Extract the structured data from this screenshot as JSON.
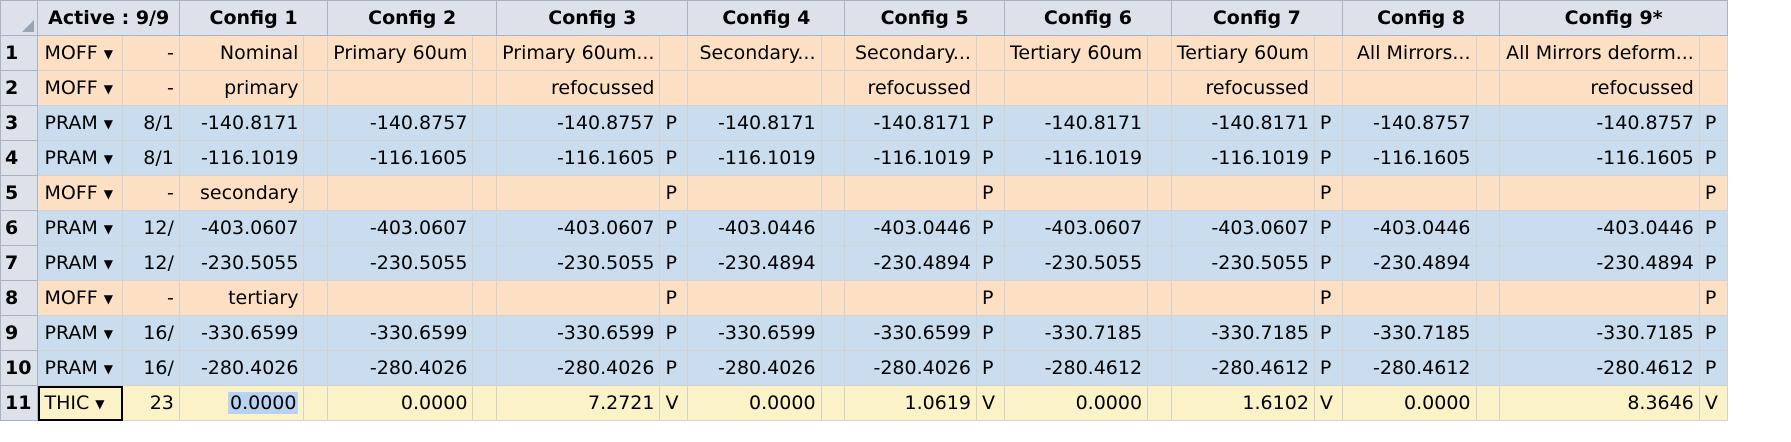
{
  "header": {
    "active_label": "Active : 9/9",
    "configs": [
      "Config 1",
      "Config 2",
      "Config 3",
      "Config 4",
      "Config 5",
      "Config 6",
      "Config 7",
      "Config 8",
      "Config 9*"
    ]
  },
  "rows": [
    {
      "num": "1",
      "op": "MOFF",
      "param": "-",
      "kind": "orange",
      "cells": [
        [
          "Nominal",
          ""
        ],
        [
          "Primary 60um",
          ""
        ],
        [
          "Primary 60um...",
          ""
        ],
        [
          "Secondary...",
          ""
        ],
        [
          "Secondary...",
          ""
        ],
        [
          "Tertiary 60um",
          ""
        ],
        [
          "Tertiary 60um",
          ""
        ],
        [
          "All Mirrors...",
          ""
        ],
        [
          "All Mirrors deform...",
          ""
        ]
      ]
    },
    {
      "num": "2",
      "op": "MOFF",
      "param": "-",
      "kind": "orange",
      "cells": [
        [
          "primary",
          ""
        ],
        [
          "",
          ""
        ],
        [
          "refocussed",
          ""
        ],
        [
          "",
          ""
        ],
        [
          "refocussed",
          ""
        ],
        [
          "",
          ""
        ],
        [
          "refocussed",
          ""
        ],
        [
          "",
          ""
        ],
        [
          "refocussed",
          ""
        ]
      ]
    },
    {
      "num": "3",
      "op": "PRAM",
      "param": "8/1",
      "kind": "blue",
      "cells": [
        [
          "-140.8171",
          ""
        ],
        [
          "-140.8757",
          ""
        ],
        [
          "-140.8757",
          "P"
        ],
        [
          "-140.8171",
          ""
        ],
        [
          "-140.8171",
          "P"
        ],
        [
          "-140.8171",
          ""
        ],
        [
          "-140.8171",
          "P"
        ],
        [
          "-140.8757",
          ""
        ],
        [
          "-140.8757",
          "P"
        ]
      ]
    },
    {
      "num": "4",
      "op": "PRAM",
      "param": "8/1",
      "kind": "blue",
      "cells": [
        [
          "-116.1019",
          ""
        ],
        [
          "-116.1605",
          ""
        ],
        [
          "-116.1605",
          "P"
        ],
        [
          "-116.1019",
          ""
        ],
        [
          "-116.1019",
          "P"
        ],
        [
          "-116.1019",
          ""
        ],
        [
          "-116.1019",
          "P"
        ],
        [
          "-116.1605",
          ""
        ],
        [
          "-116.1605",
          "P"
        ]
      ]
    },
    {
      "num": "5",
      "op": "MOFF",
      "param": "-",
      "kind": "orange",
      "cells": [
        [
          "secondary",
          ""
        ],
        [
          "",
          ""
        ],
        [
          "",
          "P"
        ],
        [
          "",
          ""
        ],
        [
          "",
          "P"
        ],
        [
          "",
          ""
        ],
        [
          "",
          "P"
        ],
        [
          "",
          ""
        ],
        [
          "",
          "P"
        ]
      ]
    },
    {
      "num": "6",
      "op": "PRAM",
      "param": "12/",
      "kind": "blue",
      "cells": [
        [
          "-403.0607",
          ""
        ],
        [
          "-403.0607",
          ""
        ],
        [
          "-403.0607",
          "P"
        ],
        [
          "-403.0446",
          ""
        ],
        [
          "-403.0446",
          "P"
        ],
        [
          "-403.0607",
          ""
        ],
        [
          "-403.0607",
          "P"
        ],
        [
          "-403.0446",
          ""
        ],
        [
          "-403.0446",
          "P"
        ]
      ]
    },
    {
      "num": "7",
      "op": "PRAM",
      "param": "12/",
      "kind": "blue",
      "cells": [
        [
          "-230.5055",
          ""
        ],
        [
          "-230.5055",
          ""
        ],
        [
          "-230.5055",
          "P"
        ],
        [
          "-230.4894",
          ""
        ],
        [
          "-230.4894",
          "P"
        ],
        [
          "-230.5055",
          ""
        ],
        [
          "-230.5055",
          "P"
        ],
        [
          "-230.4894",
          ""
        ],
        [
          "-230.4894",
          "P"
        ]
      ]
    },
    {
      "num": "8",
      "op": "MOFF",
      "param": "-",
      "kind": "orange",
      "cells": [
        [
          "tertiary",
          ""
        ],
        [
          "",
          ""
        ],
        [
          "",
          "P"
        ],
        [
          "",
          ""
        ],
        [
          "",
          "P"
        ],
        [
          "",
          ""
        ],
        [
          "",
          "P"
        ],
        [
          "",
          ""
        ],
        [
          "",
          "P"
        ]
      ]
    },
    {
      "num": "9",
      "op": "PRAM",
      "param": "16/",
      "kind": "blue",
      "cells": [
        [
          "-330.6599",
          ""
        ],
        [
          "-330.6599",
          ""
        ],
        [
          "-330.6599",
          "P"
        ],
        [
          "-330.6599",
          ""
        ],
        [
          "-330.6599",
          "P"
        ],
        [
          "-330.7185",
          ""
        ],
        [
          "-330.7185",
          "P"
        ],
        [
          "-330.7185",
          ""
        ],
        [
          "-330.7185",
          "P"
        ]
      ]
    },
    {
      "num": "10",
      "op": "PRAM",
      "param": "16/",
      "kind": "blue",
      "cells": [
        [
          "-280.4026",
          ""
        ],
        [
          "-280.4026",
          ""
        ],
        [
          "-280.4026",
          "P"
        ],
        [
          "-280.4026",
          ""
        ],
        [
          "-280.4026",
          "P"
        ],
        [
          "-280.4612",
          ""
        ],
        [
          "-280.4612",
          "P"
        ],
        [
          "-280.4612",
          ""
        ],
        [
          "-280.4612",
          "P"
        ]
      ]
    },
    {
      "num": "11",
      "op": "THIC",
      "param": "23",
      "kind": "yellow",
      "cells": [
        [
          "0.0000",
          ""
        ],
        [
          "0.0000",
          ""
        ],
        [
          "7.2721",
          "V"
        ],
        [
          "0.0000",
          ""
        ],
        [
          "1.0619",
          "V"
        ],
        [
          "0.0000",
          ""
        ],
        [
          "1.6102",
          "V"
        ],
        [
          "0.0000",
          ""
        ],
        [
          "8.3646",
          "V"
        ]
      ]
    }
  ]
}
